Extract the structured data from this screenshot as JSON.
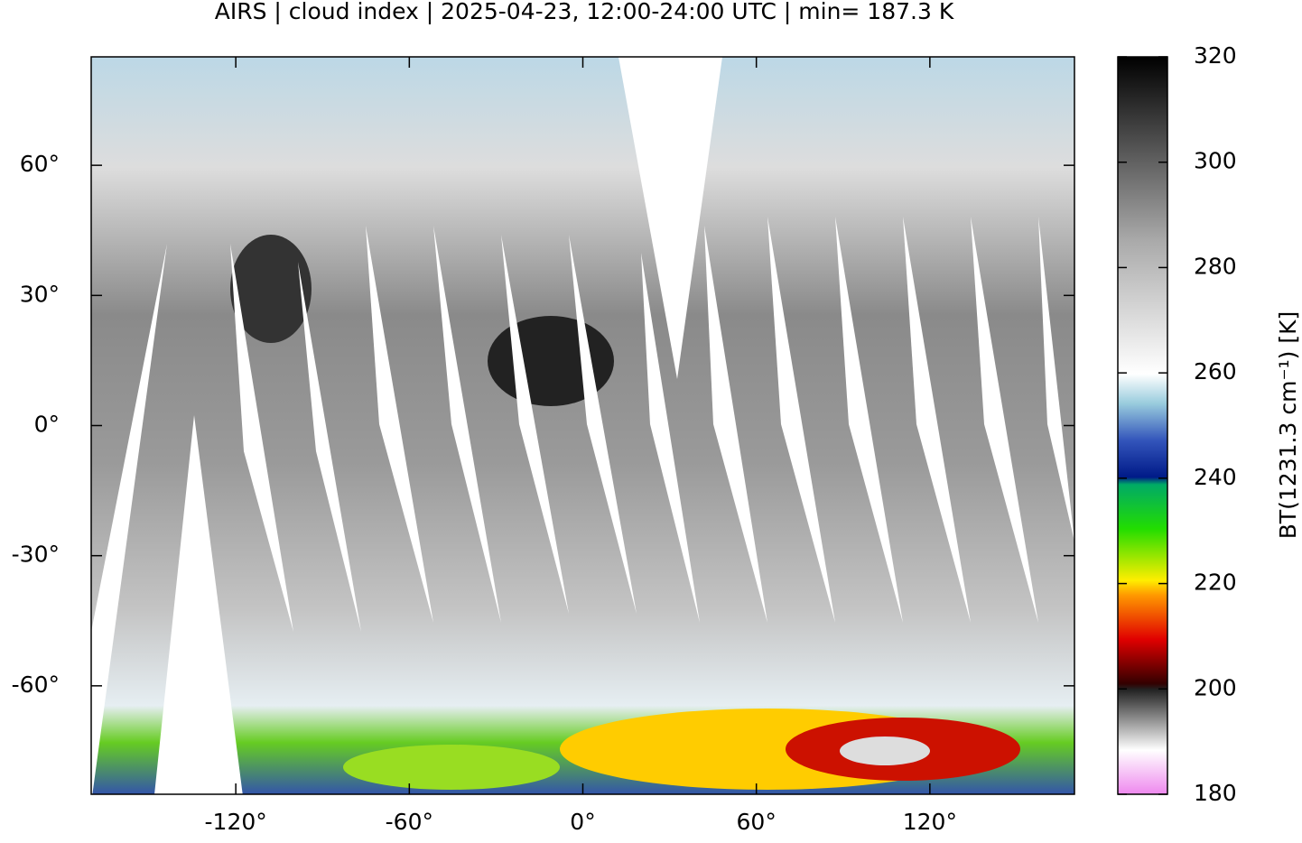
{
  "chart_data": {
    "type": "map",
    "title": "AIRS | cloud index | 2025-04-23, 12:00-24:00 UTC | min= 187.3 K",
    "xlim": [
      -170,
      170
    ],
    "ylim": [
      -85,
      85
    ],
    "xticks": [
      {
        "value": -120,
        "label": "-120°"
      },
      {
        "value": -60,
        "label": "-60°"
      },
      {
        "value": 0,
        "label": "0°"
      },
      {
        "value": 60,
        "label": "60°"
      },
      {
        "value": 120,
        "label": "120°"
      }
    ],
    "yticks": [
      {
        "value": -60,
        "label": "-60°"
      },
      {
        "value": -30,
        "label": "-30°"
      },
      {
        "value": 0,
        "label": "0°"
      },
      {
        "value": 30,
        "label": "30°"
      },
      {
        "value": 60,
        "label": "60°"
      }
    ],
    "colorbar": {
      "label": "BT(1231.3 cm⁻¹) [K]",
      "lim": [
        180,
        320
      ],
      "ticks": [
        180,
        200,
        220,
        240,
        260,
        280,
        300,
        320
      ]
    }
  }
}
